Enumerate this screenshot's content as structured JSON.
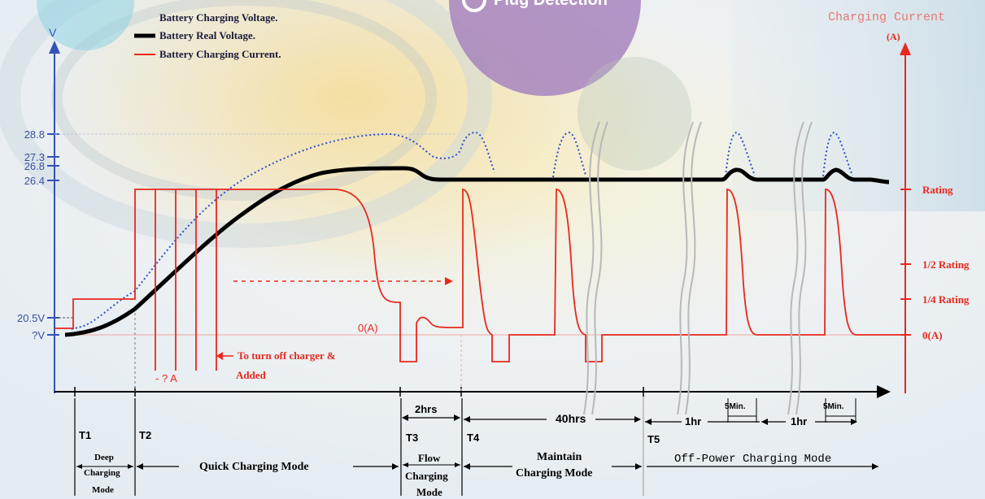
{
  "colors": {
    "voltage_real": "#000000",
    "voltage_charging": "#2f4fc8",
    "current": "#e8281e",
    "axis_left": "#3552b8",
    "axis_right": "#e8281e",
    "label_blue": "#3b4fa0"
  },
  "header": {
    "plug_detection": "Plug Detection",
    "plug_icon": "plug-circle-icon"
  },
  "legend": {
    "items": [
      {
        "name": "Battery Charging Voltage.",
        "style": "dotted-blue"
      },
      {
        "name": "Battery Real Voltage.",
        "style": "thick-black"
      },
      {
        "name": "Battery Charging Current.",
        "style": "red"
      }
    ]
  },
  "chart_data": {
    "type": "line",
    "left_axis": {
      "label": "V",
      "ticks": [
        "28.8",
        "27.3",
        "26.8",
        "26.4",
        "20.5V",
        "?V"
      ]
    },
    "right_axis": {
      "label": "Charging Current",
      "unit": "(A)",
      "ticks": [
        "Rating",
        "1/2 Rating",
        "1/4 Rating",
        "0(A)"
      ]
    },
    "zero_current_label": "0(A)",
    "negative_current_label": "- ? A",
    "annotations": {
      "turn_off_line1": "To turn off charger &",
      "turn_off_line2": "Added"
    },
    "periods": [
      "T1",
      "T2",
      "T3",
      "T4",
      "T5"
    ],
    "durations": {
      "flow": "2hrs",
      "maintain": "40hrs",
      "off_hr1": "1hr",
      "off_hr2": "1hr",
      "five_min_1": "5Min.",
      "five_min_2": "5Min."
    },
    "modes": {
      "deep": [
        "Deep",
        "Charging",
        "Mode"
      ],
      "quick": "Quick Charging Mode",
      "flow": [
        "Flow",
        "Charging",
        "Mode"
      ],
      "maintain": [
        "Maintain",
        "Charging Mode"
      ],
      "off_power": "Off-Power Charging Mode"
    },
    "series": [
      {
        "name": "Battery Charging Voltage."
      },
      {
        "name": "Battery Real Voltage."
      },
      {
        "name": "Battery Charging Current."
      }
    ]
  }
}
